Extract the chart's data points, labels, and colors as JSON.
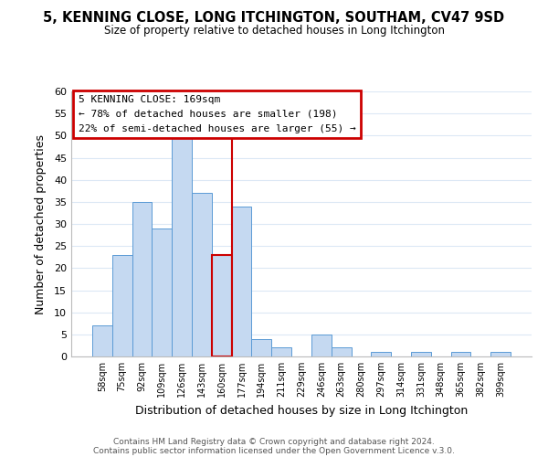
{
  "title": "5, KENNING CLOSE, LONG ITCHINGTON, SOUTHAM, CV47 9SD",
  "subtitle": "Size of property relative to detached houses in Long Itchington",
  "xlabel": "Distribution of detached houses by size in Long Itchington",
  "ylabel": "Number of detached properties",
  "footer1": "Contains HM Land Registry data © Crown copyright and database right 2024.",
  "footer2": "Contains public sector information licensed under the Open Government Licence v.3.0.",
  "bin_labels": [
    "58sqm",
    "75sqm",
    "92sqm",
    "109sqm",
    "126sqm",
    "143sqm",
    "160sqm",
    "177sqm",
    "194sqm",
    "211sqm",
    "229sqm",
    "246sqm",
    "263sqm",
    "280sqm",
    "297sqm",
    "314sqm",
    "331sqm",
    "348sqm",
    "365sqm",
    "382sqm",
    "399sqm"
  ],
  "bar_heights": [
    7,
    23,
    35,
    29,
    50,
    37,
    23,
    34,
    4,
    2,
    0,
    5,
    2,
    0,
    1,
    0,
    1,
    0,
    1,
    0,
    1
  ],
  "bar_color": "#c5d9f1",
  "bar_edge_color": "#5b9bd5",
  "highlight_bar_index": 6,
  "highlight_bar_edge_color": "#cc0000",
  "vline_x": 6.5,
  "vline_color": "#cc0000",
  "ylim": [
    0,
    60
  ],
  "yticks": [
    0,
    5,
    10,
    15,
    20,
    25,
    30,
    35,
    40,
    45,
    50,
    55,
    60
  ],
  "annotation_title": "5 KENNING CLOSE: 169sqm",
  "annotation_line1": "← 78% of detached houses are smaller (198)",
  "annotation_line2": "22% of semi-detached houses are larger (55) →",
  "annotation_box_color": "#ffffff",
  "annotation_border_color": "#cc0000",
  "background_color": "#ffffff",
  "grid_color": "#dce8f5"
}
